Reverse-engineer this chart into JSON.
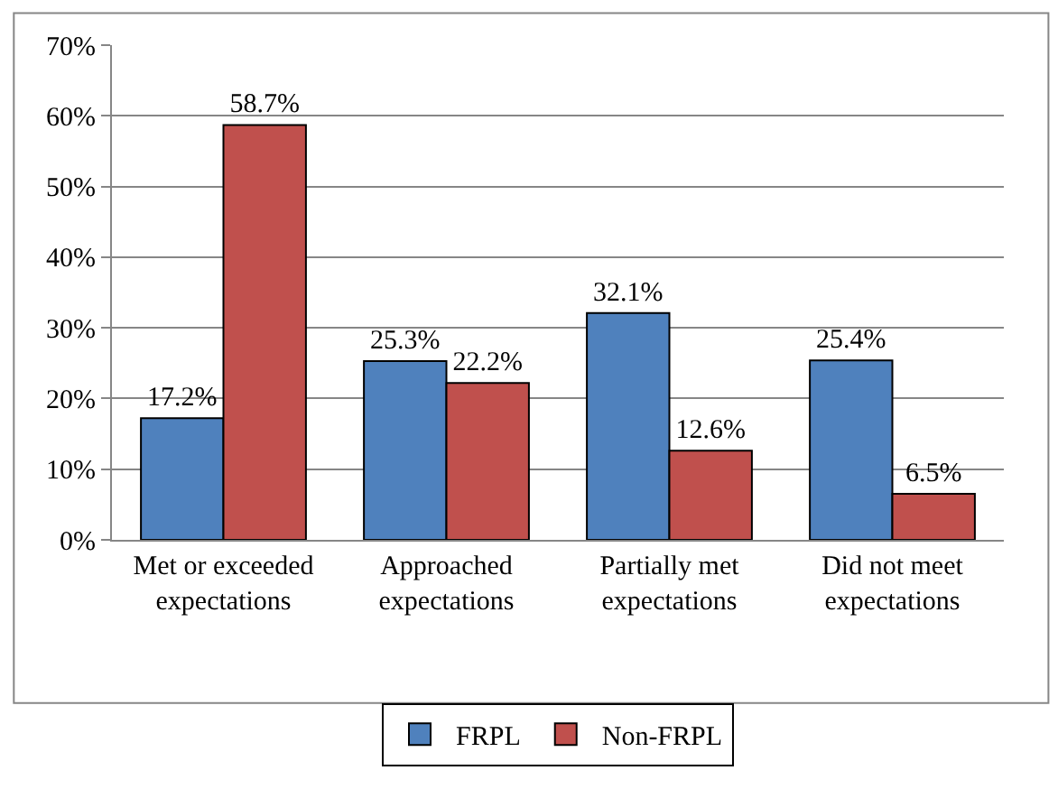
{
  "chart_data": {
    "type": "bar",
    "categories": [
      "Met or exceeded expectations",
      "Approached expectations",
      "Partially met expectations",
      "Did not meet expectations"
    ],
    "series": [
      {
        "name": "FRPL",
        "color": "#4f81bd",
        "values": [
          17.2,
          25.3,
          32.1,
          25.4
        ]
      },
      {
        "name": "Non-FRPL",
        "color": "#c0504d",
        "values": [
          58.7,
          22.2,
          12.6,
          6.5
        ]
      }
    ],
    "value_labels": [
      [
        "17.2%",
        "25.3%",
        "32.1%",
        "25.4%"
      ],
      [
        "58.7%",
        "22.2%",
        "12.6%",
        "6.5%"
      ]
    ],
    "ylim": [
      0,
      70
    ],
    "yticks": [
      {
        "value": 0,
        "label": "0%"
      },
      {
        "value": 10,
        "label": "10%"
      },
      {
        "value": 20,
        "label": "20%"
      },
      {
        "value": 30,
        "label": "30%"
      },
      {
        "value": 40,
        "label": "40%"
      },
      {
        "value": 50,
        "label": "50%"
      },
      {
        "value": 60,
        "label": "60%"
      },
      {
        "value": 70,
        "label": "70%"
      }
    ],
    "grid": "y",
    "legend": "bottom"
  }
}
